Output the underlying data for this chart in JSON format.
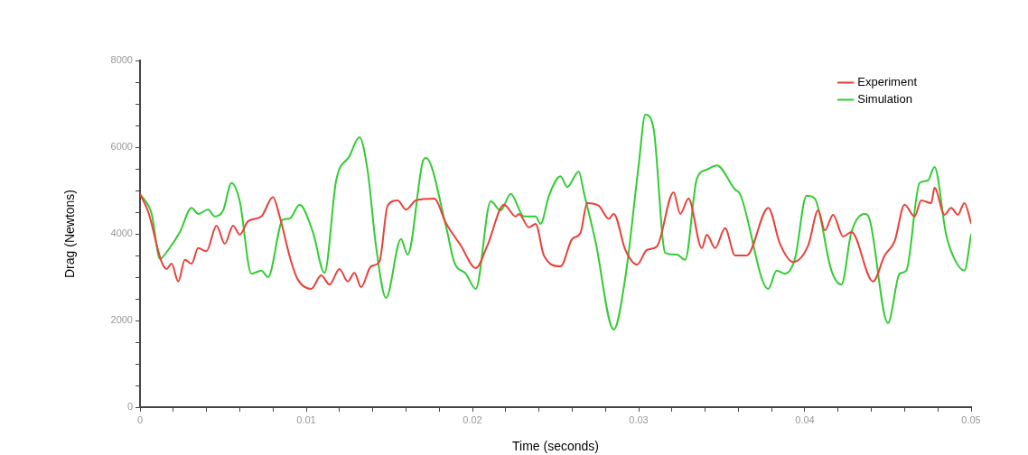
{
  "chart_data": {
    "type": "line",
    "xlabel": "Time (seconds)",
    "ylabel": "Drag (Newtons)",
    "xlim": [
      0,
      0.05
    ],
    "xticks": [
      0,
      {
        "value": 0.002,
        "label": null
      },
      {
        "value": 0.004,
        "label": null
      },
      {
        "value": 0.006,
        "label": null
      },
      {
        "value": 0.008,
        "label": null
      },
      0.01,
      {
        "value": 0.012,
        "label": null
      },
      {
        "value": 0.014,
        "label": null
      },
      {
        "value": 0.016,
        "label": null
      },
      {
        "value": 0.018,
        "label": null
      },
      0.02,
      {
        "value": 0.022,
        "label": null
      },
      {
        "value": 0.024,
        "label": null
      },
      {
        "value": 0.026,
        "label": null
      },
      {
        "value": 0.028,
        "label": null
      },
      0.03,
      {
        "value": 0.032,
        "label": null
      },
      {
        "value": 0.034,
        "label": null
      },
      {
        "value": 0.036,
        "label": null
      },
      {
        "value": 0.038,
        "label": null
      },
      0.04,
      {
        "value": 0.042,
        "label": null
      },
      {
        "value": 0.044,
        "label": null
      },
      {
        "value": 0.046,
        "label": null
      },
      {
        "value": 0.048,
        "label": null
      },
      0.05
    ],
    "ylim": [
      0,
      8000
    ],
    "yticks": [
      0,
      {
        "value": 500,
        "label": null
      },
      {
        "value": 1000,
        "label": null
      },
      {
        "value": 1500,
        "label": null
      },
      2000,
      {
        "value": 2500,
        "label": null
      },
      {
        "value": 3000,
        "label": null
      },
      {
        "value": 3500,
        "label": null
      },
      4000,
      {
        "value": 4500,
        "label": null
      },
      {
        "value": 5000,
        "label": null
      },
      {
        "value": 5500,
        "label": null
      },
      6000,
      {
        "value": 6500,
        "label": null
      },
      {
        "value": 7000,
        "label": null
      },
      {
        "value": 7500,
        "label": null
      },
      8000
    ],
    "grid": false,
    "legend": "top right",
    "marker": "none",
    "line_style": "solid",
    "series": [
      {
        "name": "Experiment",
        "color": "#e8413a",
        "x": [
          0,
          0.0005,
          0.0013,
          0.0016,
          0.0019,
          0.0023,
          0.0027,
          0.0031,
          0.0035,
          0.004,
          0.0046,
          0.0051,
          0.0056,
          0.006,
          0.0065,
          0.0073,
          0.008,
          0.0084,
          0.0091,
          0.0095,
          0.0103,
          0.0109,
          0.0114,
          0.012,
          0.0125,
          0.0129,
          0.0133,
          0.0139,
          0.0144,
          0.0149,
          0.0155,
          0.016,
          0.0166,
          0.0177,
          0.0184,
          0.0193,
          0.0202,
          0.0209,
          0.0219,
          0.0226,
          0.0228,
          0.0234,
          0.0238,
          0.0243,
          0.0253,
          0.026,
          0.0265,
          0.0269,
          0.0276,
          0.0282,
          0.0285,
          0.0292,
          0.0299,
          0.0305,
          0.0311,
          0.0321,
          0.0325,
          0.033,
          0.0338,
          0.0341,
          0.0346,
          0.0352,
          0.0358,
          0.0365,
          0.0378,
          0.0385,
          0.0393,
          0.0402,
          0.0408,
          0.0412,
          0.0417,
          0.0423,
          0.0428,
          0.0441,
          0.0448,
          0.0454,
          0.046,
          0.0466,
          0.047,
          0.0476,
          0.0478,
          0.0484,
          0.0488,
          0.0492,
          0.0496,
          0.05
        ],
        "values": [
          4920,
          4500,
          3350,
          3190,
          3310,
          2900,
          3400,
          3310,
          3670,
          3600,
          4190,
          3770,
          4190,
          3980,
          4290,
          4400,
          4850,
          4400,
          3350,
          2940,
          2730,
          3040,
          2830,
          3190,
          2900,
          3100,
          2770,
          3250,
          3350,
          4650,
          4770,
          4560,
          4770,
          4810,
          4250,
          3730,
          3210,
          3730,
          4670,
          4400,
          4460,
          4150,
          4230,
          3500,
          3250,
          3880,
          4020,
          4710,
          4650,
          4350,
          4460,
          3630,
          3290,
          3630,
          3710,
          4960,
          4460,
          4810,
          3670,
          3980,
          3670,
          4130,
          3500,
          3500,
          4600,
          3770,
          3350,
          3730,
          4540,
          4080,
          4440,
          3940,
          4040,
          2900,
          3500,
          3830,
          4670,
          4400,
          4770,
          4710,
          5060,
          4440,
          4600,
          4440,
          4710,
          4250
        ]
      },
      {
        "name": "Simulation",
        "color": "#33cc33",
        "x": [
          0,
          0.0007,
          0.0012,
          0.0017,
          0.0024,
          0.0031,
          0.0035,
          0.0041,
          0.0045,
          0.005,
          0.0055,
          0.006,
          0.0067,
          0.0073,
          0.0077,
          0.0086,
          0.009,
          0.0096,
          0.0104,
          0.0111,
          0.0118,
          0.0126,
          0.0132,
          0.0137,
          0.0142,
          0.0148,
          0.0157,
          0.0161,
          0.017,
          0.0172,
          0.0184,
          0.0189,
          0.0196,
          0.0202,
          0.0211,
          0.0217,
          0.0223,
          0.0231,
          0.0238,
          0.0241,
          0.0246,
          0.0253,
          0.0257,
          0.0264,
          0.0267,
          0.0274,
          0.0285,
          0.0292,
          0.03,
          0.0304,
          0.0309,
          0.0316,
          0.0323,
          0.0328,
          0.0335,
          0.0341,
          0.0347,
          0.0358,
          0.0361,
          0.0378,
          0.0383,
          0.0388,
          0.0394,
          0.0401,
          0.0406,
          0.0416,
          0.0422,
          0.0428,
          0.0436,
          0.0439,
          0.045,
          0.0457,
          0.0461,
          0.0469,
          0.0474,
          0.0478,
          0.0485,
          0.049,
          0.0496,
          0.05
        ],
        "values": [
          4920,
          4460,
          3420,
          3630,
          4040,
          4600,
          4460,
          4560,
          4400,
          4540,
          5170,
          4750,
          3080,
          3150,
          3000,
          4330,
          4350,
          4670,
          4040,
          3100,
          5230,
          5790,
          6230,
          5440,
          3710,
          2520,
          3880,
          3520,
          5650,
          5750,
          4190,
          3350,
          3080,
          2730,
          4750,
          4540,
          4920,
          4400,
          4400,
          4230,
          4880,
          5330,
          5080,
          5440,
          4960,
          3830,
          1790,
          3000,
          5580,
          6750,
          6420,
          3560,
          3520,
          3400,
          5270,
          5480,
          5580,
          5020,
          4920,
          2730,
          3150,
          3080,
          3420,
          4880,
          4810,
          3150,
          2830,
          4040,
          4460,
          4330,
          1940,
          3080,
          3150,
          5170,
          5230,
          5540,
          3980,
          3420,
          3150,
          3980
        ]
      }
    ]
  }
}
